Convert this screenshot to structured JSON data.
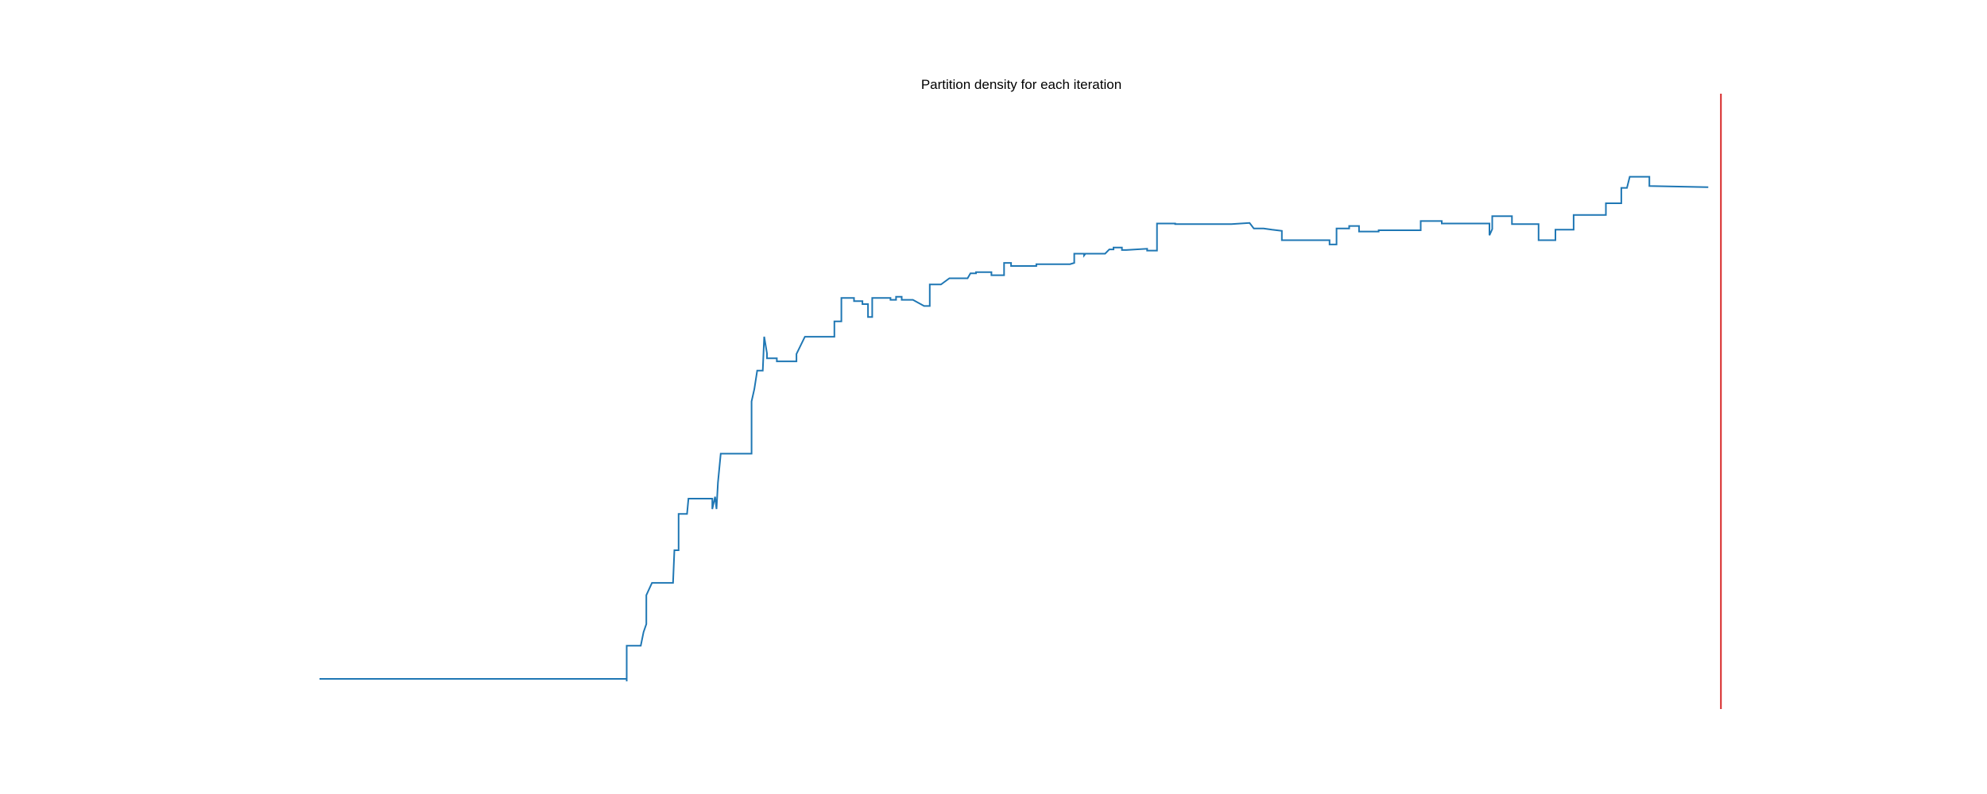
{
  "chart_data": {
    "type": "line",
    "title": "Partition density for each iteration",
    "xlabel": "",
    "ylabel": "",
    "x_range": [
      0,
      1
    ],
    "y_range": [
      0,
      1
    ],
    "grid": false,
    "axes_visible": false,
    "series": [
      {
        "color": "#1f77b4",
        "step": true,
        "points": [
          [
            0.0,
            0.049
          ],
          [
            0.219,
            0.049
          ],
          [
            0.219,
            0.045
          ],
          [
            0.219,
            0.103
          ],
          [
            0.229,
            0.103
          ],
          [
            0.231,
            0.125
          ],
          [
            0.233,
            0.138
          ],
          [
            0.233,
            0.185
          ],
          [
            0.237,
            0.205
          ],
          [
            0.252,
            0.205
          ],
          [
            0.253,
            0.258
          ],
          [
            0.256,
            0.258
          ],
          [
            0.256,
            0.317
          ],
          [
            0.262,
            0.317
          ],
          [
            0.263,
            0.342
          ],
          [
            0.28,
            0.342
          ],
          [
            0.28,
            0.325
          ],
          [
            0.282,
            0.345
          ],
          [
            0.283,
            0.325
          ],
          [
            0.284,
            0.368
          ],
          [
            0.286,
            0.415
          ],
          [
            0.308,
            0.415
          ],
          [
            0.308,
            0.5
          ],
          [
            0.31,
            0.52
          ],
          [
            0.312,
            0.55
          ],
          [
            0.316,
            0.55
          ],
          [
            0.317,
            0.605
          ],
          [
            0.319,
            0.578
          ],
          [
            0.319,
            0.57
          ],
          [
            0.326,
            0.57
          ],
          [
            0.326,
            0.565
          ],
          [
            0.34,
            0.565
          ],
          [
            0.34,
            0.577
          ],
          [
            0.346,
            0.605
          ],
          [
            0.367,
            0.605
          ],
          [
            0.367,
            0.63
          ],
          [
            0.372,
            0.63
          ],
          [
            0.372,
            0.668
          ],
          [
            0.381,
            0.668
          ],
          [
            0.381,
            0.663
          ],
          [
            0.387,
            0.663
          ],
          [
            0.387,
            0.658
          ],
          [
            0.391,
            0.658
          ],
          [
            0.391,
            0.637
          ],
          [
            0.394,
            0.637
          ],
          [
            0.394,
            0.668
          ],
          [
            0.407,
            0.668
          ],
          [
            0.407,
            0.665
          ],
          [
            0.411,
            0.665
          ],
          [
            0.411,
            0.67
          ],
          [
            0.415,
            0.67
          ],
          [
            0.415,
            0.665
          ],
          [
            0.423,
            0.665
          ],
          [
            0.431,
            0.655
          ],
          [
            0.435,
            0.655
          ],
          [
            0.435,
            0.69
          ],
          [
            0.443,
            0.69
          ],
          [
            0.449,
            0.7
          ],
          [
            0.462,
            0.7
          ],
          [
            0.464,
            0.708
          ],
          [
            0.468,
            0.708
          ],
          [
            0.468,
            0.71
          ],
          [
            0.479,
            0.71
          ],
          [
            0.479,
            0.705
          ],
          [
            0.488,
            0.705
          ],
          [
            0.488,
            0.725
          ],
          [
            0.493,
            0.725
          ],
          [
            0.493,
            0.72
          ],
          [
            0.511,
            0.72
          ],
          [
            0.511,
            0.723
          ],
          [
            0.535,
            0.723
          ],
          [
            0.538,
            0.725
          ],
          [
            0.538,
            0.74
          ],
          [
            0.545,
            0.74
          ],
          [
            0.545,
            0.737
          ],
          [
            0.546,
            0.74
          ],
          [
            0.56,
            0.74
          ],
          [
            0.563,
            0.747
          ],
          [
            0.566,
            0.747
          ],
          [
            0.566,
            0.75
          ],
          [
            0.572,
            0.75
          ],
          [
            0.572,
            0.746
          ],
          [
            0.575,
            0.746
          ],
          [
            0.59,
            0.748
          ],
          [
            0.59,
            0.745
          ],
          [
            0.597,
            0.745
          ],
          [
            0.597,
            0.789
          ],
          [
            0.61,
            0.789
          ],
          [
            0.61,
            0.788
          ],
          [
            0.65,
            0.788
          ],
          [
            0.663,
            0.79
          ],
          [
            0.666,
            0.781
          ],
          [
            0.673,
            0.781
          ],
          [
            0.679,
            0.779
          ],
          [
            0.686,
            0.777
          ],
          [
            0.686,
            0.762
          ],
          [
            0.7,
            0.762
          ],
          [
            0.72,
            0.762
          ],
          [
            0.72,
            0.755
          ],
          [
            0.725,
            0.755
          ],
          [
            0.725,
            0.781
          ],
          [
            0.734,
            0.781
          ],
          [
            0.734,
            0.785
          ],
          [
            0.741,
            0.785
          ],
          [
            0.741,
            0.776
          ],
          [
            0.755,
            0.776
          ],
          [
            0.755,
            0.778
          ],
          [
            0.785,
            0.778
          ],
          [
            0.785,
            0.793
          ],
          [
            0.8,
            0.793
          ],
          [
            0.8,
            0.789
          ],
          [
            0.834,
            0.789
          ],
          [
            0.834,
            0.77
          ],
          [
            0.836,
            0.78
          ],
          [
            0.836,
            0.801
          ],
          [
            0.85,
            0.801
          ],
          [
            0.85,
            0.788
          ],
          [
            0.869,
            0.788
          ],
          [
            0.869,
            0.762
          ],
          [
            0.881,
            0.762
          ],
          [
            0.881,
            0.779
          ],
          [
            0.894,
            0.779
          ],
          [
            0.894,
            0.803
          ],
          [
            0.917,
            0.803
          ],
          [
            0.917,
            0.822
          ],
          [
            0.928,
            0.822
          ],
          [
            0.928,
            0.847
          ],
          [
            0.932,
            0.847
          ],
          [
            0.934,
            0.865
          ],
          [
            0.948,
            0.865
          ],
          [
            0.948,
            0.85
          ],
          [
            0.99,
            0.848
          ]
        ]
      }
    ],
    "reference_lines": [
      {
        "orientation": "vertical",
        "x": 0.999,
        "color": "#d62728"
      }
    ]
  }
}
